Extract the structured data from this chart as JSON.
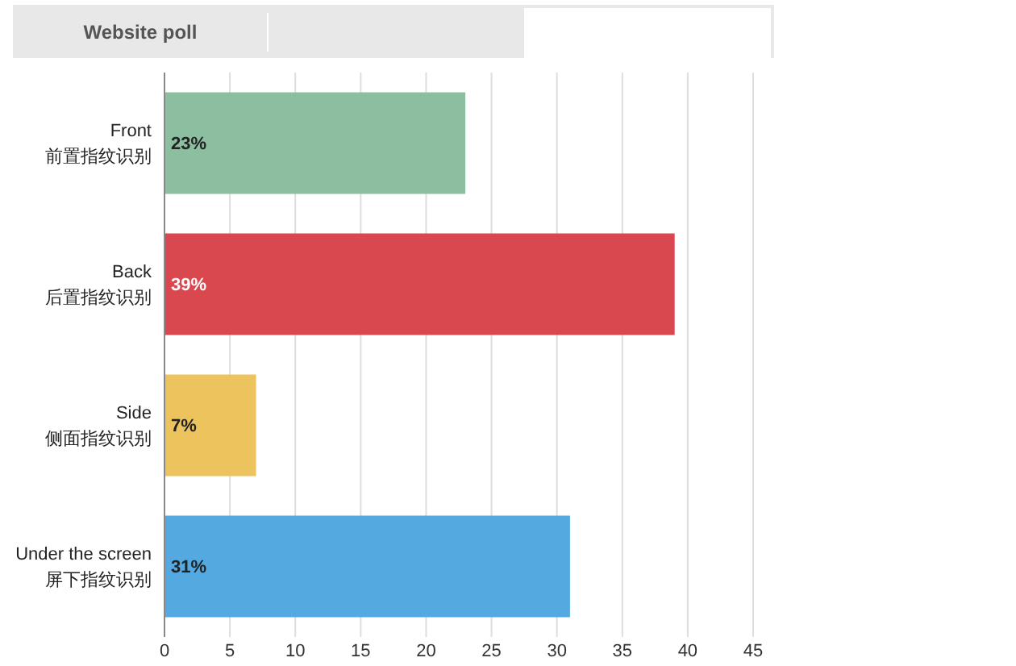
{
  "chart_data": {
    "type": "bar",
    "orientation": "horizontal",
    "categories": [
      "Front\n前置指纹识别",
      "Back\n后置指纹识别",
      "Side\n侧面指纹识别",
      "Under the screen\n屏下指纹识别"
    ],
    "values": [
      23,
      39,
      7,
      31
    ],
    "colors": [
      "#8bbf9f",
      "#d9474f",
      "#ecc35c",
      "#54a9e0"
    ],
    "value_labels": [
      "23%",
      "39%",
      "7%",
      "31%"
    ],
    "xlim": [
      0,
      45
    ],
    "xticks": [
      0,
      5,
      10,
      15,
      20,
      25,
      30,
      35,
      40,
      45
    ],
    "grid": "x",
    "annotations": [
      "Website poll"
    ]
  }
}
